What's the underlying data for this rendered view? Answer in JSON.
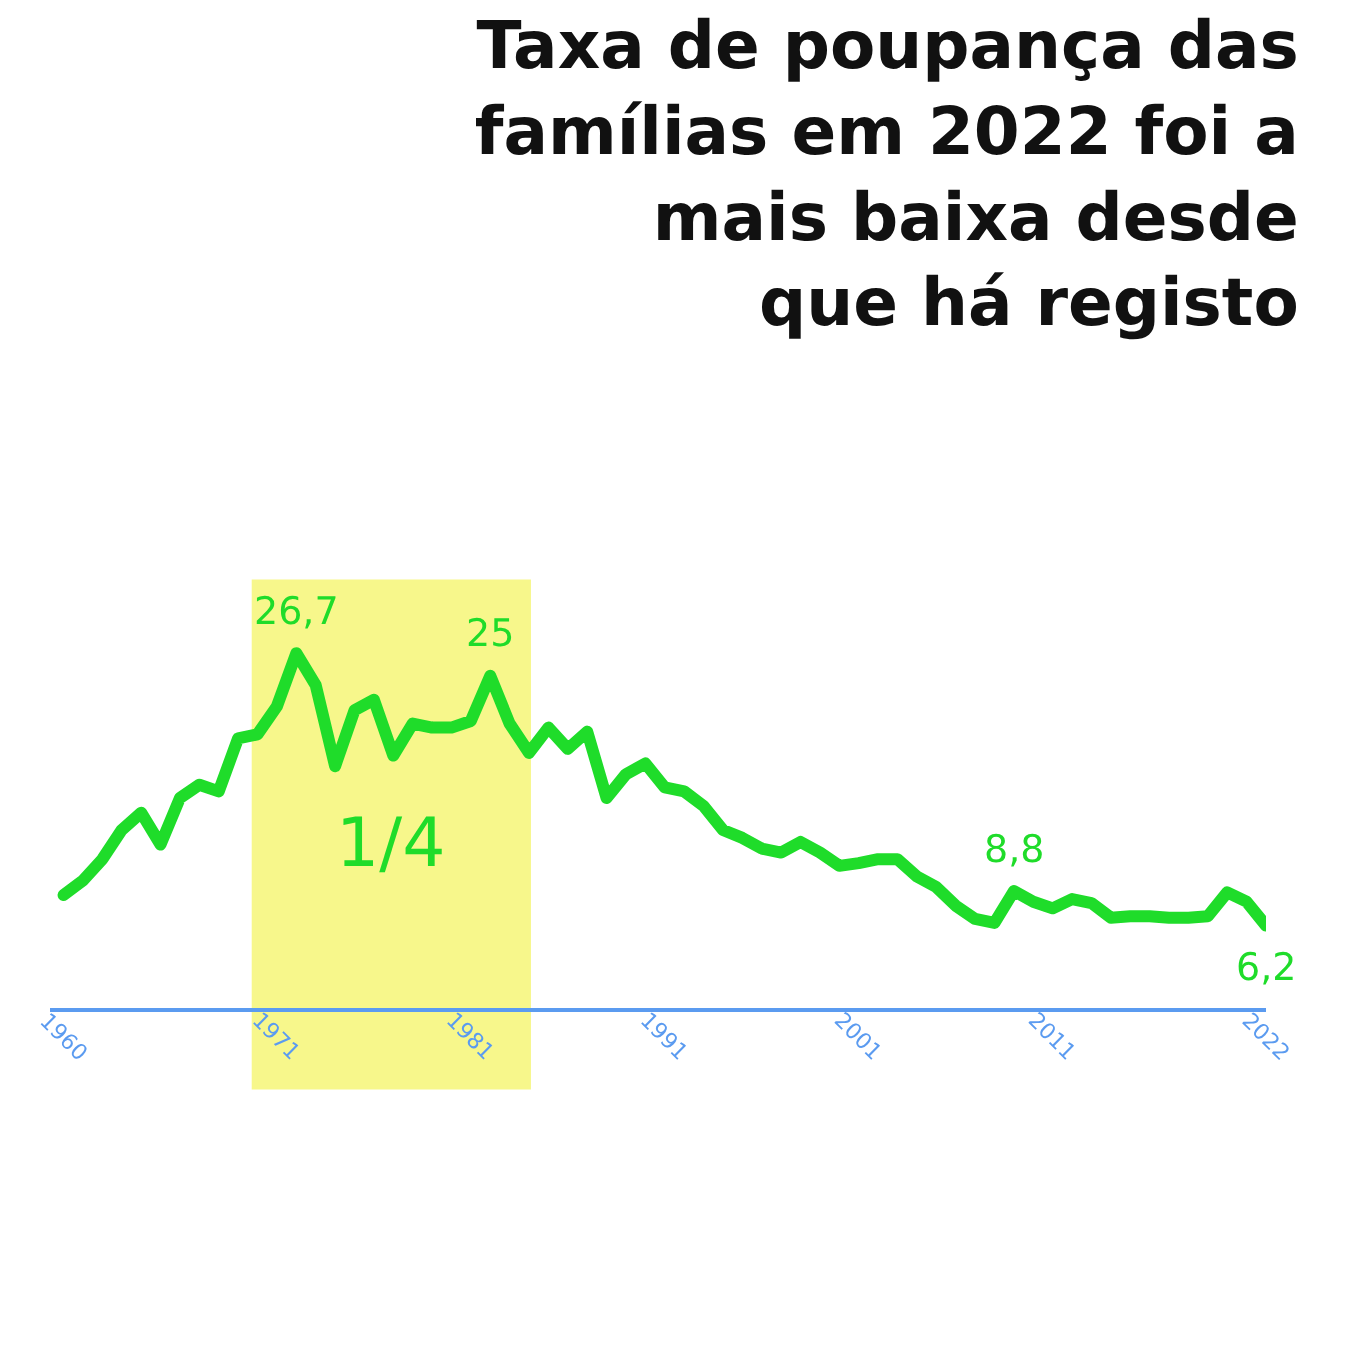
{
  "chart_data": {
    "type": "line",
    "title": "Taxa de poupança das\nfamílias em 2022 foi a\nmais baixa desde\nque há registo",
    "color": "#1fdc2a",
    "x": [
      1960,
      1961,
      1962,
      1963,
      1964,
      1965,
      1966,
      1967,
      1968,
      1969,
      1970,
      1971,
      1972,
      1973,
      1974,
      1975,
      1976,
      1977,
      1978,
      1979,
      1980,
      1981,
      1982,
      1983,
      1984,
      1985,
      1986,
      1987,
      1988,
      1989,
      1990,
      1991,
      1992,
      1993,
      1994,
      1995,
      1996,
      1997,
      1998,
      1999,
      2000,
      2001,
      2002,
      2003,
      2004,
      2005,
      2006,
      2007,
      2008,
      2009,
      2010,
      2011,
      2012,
      2013,
      2014,
      2015,
      2016,
      2017,
      2018,
      2019,
      2020,
      2021,
      2022
    ],
    "values": [
      8.5,
      9.6,
      11.2,
      13.4,
      14.7,
      12.3,
      15.8,
      16.8,
      16.3,
      20.3,
      20.6,
      22.7,
      26.7,
      24.3,
      18.2,
      22.4,
      23.2,
      19.0,
      21.4,
      21.1,
      21.1,
      21.6,
      25,
      21.4,
      19.2,
      21.1,
      19.5,
      20.8,
      15.8,
      17.6,
      18.4,
      16.6,
      16.3,
      15.2,
      13.4,
      12.8,
      12.0,
      11.7,
      12.5,
      11.7,
      10.7,
      10.9,
      11.2,
      11.2,
      9.9,
      9.1,
      7.7,
      6.7,
      6.4,
      8.8,
      8.0,
      7.5,
      8.2,
      7.9,
      6.8,
      6.9,
      6.9,
      6.8,
      6.8,
      6.9,
      8.7,
      8.0,
      6.2
    ],
    "value_labels": [
      null,
      null,
      null,
      null,
      null,
      null,
      null,
      null,
      null,
      null,
      null,
      null,
      "26,7",
      null,
      null,
      null,
      null,
      null,
      null,
      null,
      null,
      null,
      "25",
      null,
      null,
      null,
      null,
      null,
      null,
      null,
      null,
      null,
      null,
      null,
      null,
      null,
      null,
      null,
      null,
      null,
      null,
      null,
      null,
      null,
      null,
      null,
      null,
      null,
      null,
      "8,8",
      null,
      null,
      null,
      null,
      null,
      null,
      null,
      null,
      null,
      null,
      null,
      null,
      "6,2"
    ],
    "xlim": [
      1959.3,
      2022
    ],
    "xticks": [
      1960,
      1971,
      1981,
      1991,
      2001,
      2011,
      2022
    ],
    "tick_labels": "x",
    "bands": [
      {
        "axis": "x",
        "from": 1969.7,
        "to": 1984.1,
        "label": "1/4",
        "color": "#f4f45a"
      }
    ],
    "grid": false
  }
}
